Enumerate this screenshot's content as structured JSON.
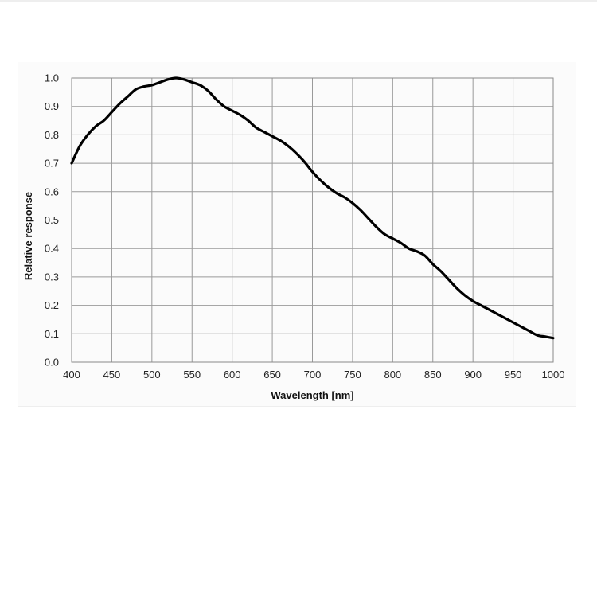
{
  "chart_data": {
    "type": "line",
    "title": "",
    "xlabel": "Wavelength [nm]",
    "ylabel": "Relative response",
    "xlim": [
      400,
      1000
    ],
    "ylim": [
      0,
      1.0
    ],
    "grid": true,
    "x_ticks": [
      "400",
      "450",
      "500",
      "550",
      "600",
      "650",
      "700",
      "750",
      "800",
      "850",
      "900",
      "950",
      "1000"
    ],
    "y_ticks": [
      "0.0",
      "0.1",
      "0.2",
      "0.3",
      "0.4",
      "0.5",
      "0.6",
      "0.7",
      "0.8",
      "0.9",
      "1.0"
    ],
    "series": [
      {
        "color": "#000000",
        "x": [
          400,
          410,
          420,
          430,
          440,
          450,
          460,
          470,
          480,
          490,
          500,
          510,
          520,
          530,
          540,
          550,
          560,
          570,
          580,
          590,
          600,
          610,
          620,
          630,
          640,
          650,
          660,
          670,
          680,
          690,
          700,
          710,
          720,
          730,
          740,
          750,
          760,
          770,
          780,
          790,
          800,
          810,
          820,
          830,
          840,
          850,
          860,
          870,
          880,
          890,
          900,
          910,
          920,
          930,
          940,
          950,
          960,
          970,
          980,
          990,
          1000
        ],
        "values": [
          0.7,
          0.76,
          0.8,
          0.83,
          0.85,
          0.88,
          0.91,
          0.935,
          0.96,
          0.97,
          0.975,
          0.985,
          0.995,
          1.0,
          0.995,
          0.985,
          0.975,
          0.955,
          0.925,
          0.9,
          0.885,
          0.87,
          0.85,
          0.825,
          0.81,
          0.795,
          0.78,
          0.76,
          0.735,
          0.705,
          0.67,
          0.64,
          0.615,
          0.595,
          0.58,
          0.56,
          0.535,
          0.505,
          0.475,
          0.45,
          0.435,
          0.42,
          0.4,
          0.39,
          0.375,
          0.345,
          0.32,
          0.29,
          0.26,
          0.235,
          0.215,
          0.2,
          0.185,
          0.17,
          0.155,
          0.14,
          0.125,
          0.11,
          0.095,
          0.09,
          0.085
        ]
      }
    ]
  }
}
